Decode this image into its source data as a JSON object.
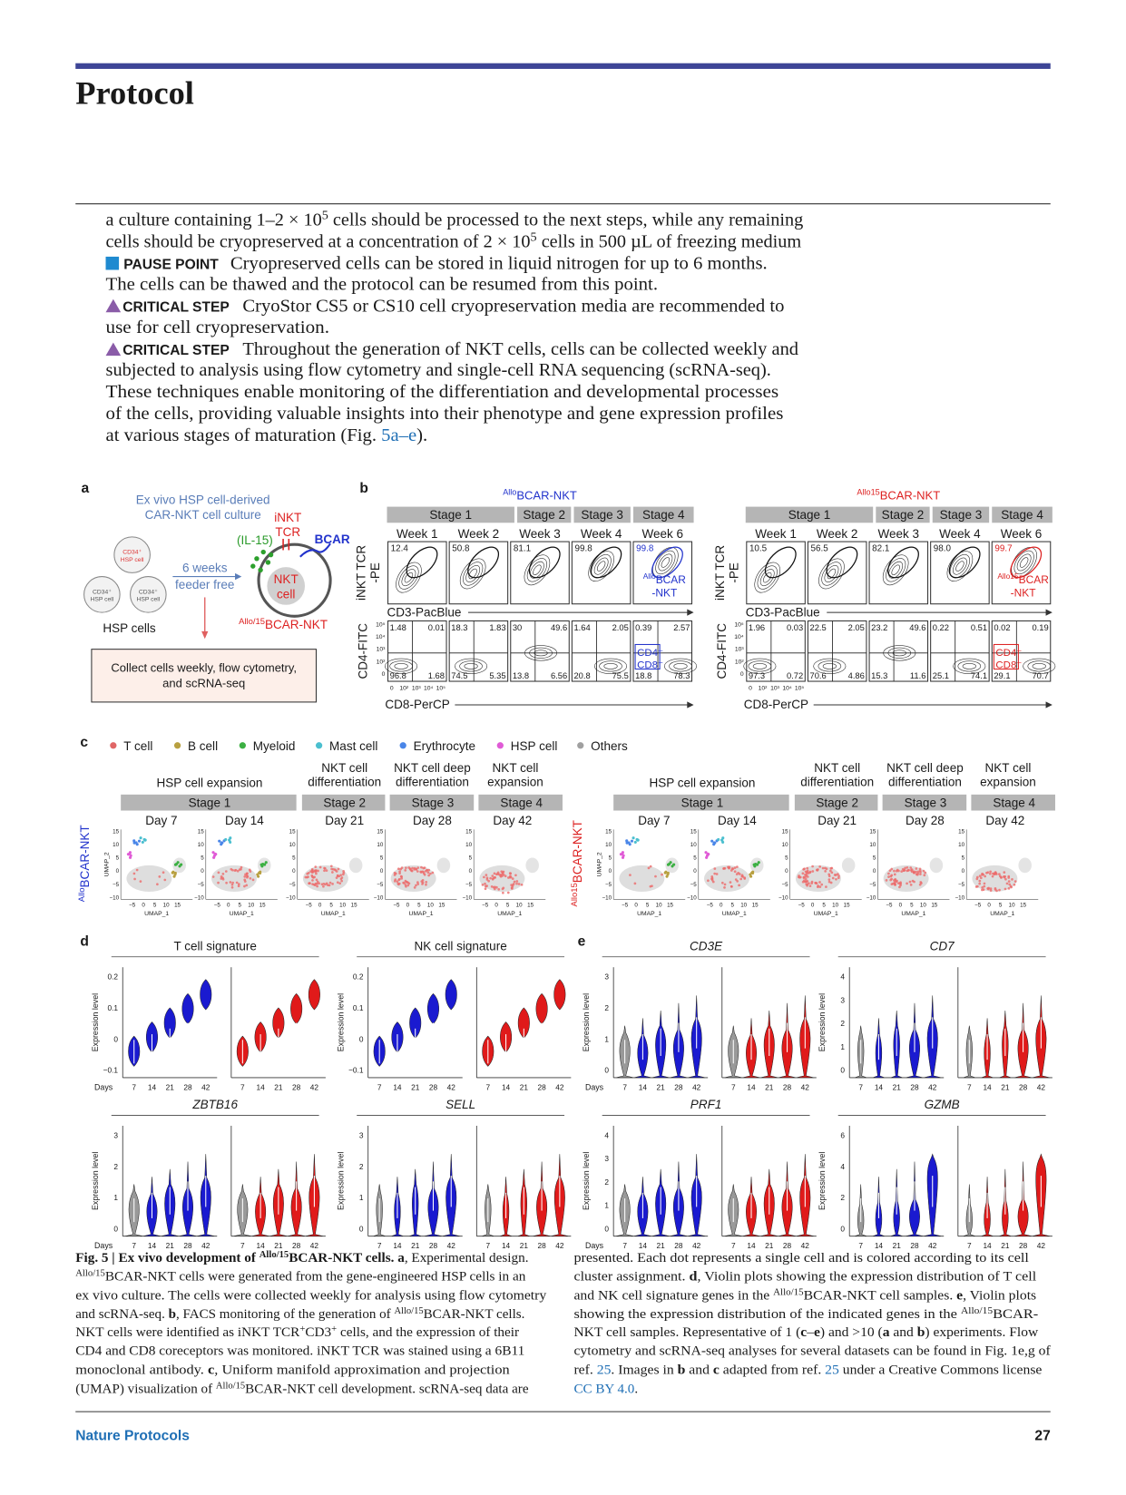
{
  "header": {
    "section": "Protocol"
  },
  "body": {
    "lines": [
      [
        "a culture containing 1–2 × 10",
        "5",
        " cells should be processed to the next steps, while any remaining"
      ],
      [
        "cells should be cryopreserved at a concentration of 2 × 10",
        "5",
        " cells in 500 µL of freezing medium"
      ],
      [
        "PAUSE POINT",
        "Cryopreserved cells can be stored in liquid nitrogen for up to 6 months."
      ],
      [
        "The cells can be thawed and the protocol can be resumed from this point."
      ],
      [
        "CRITICAL STEP",
        "CryoStor CS5 or CS10 cell cryopreservation media are recommended to"
      ],
      [
        "use for cell cryopreservation."
      ],
      [
        "CRITICAL STEP",
        "Throughout the generation of NKT cells, cells can be collected weekly and"
      ],
      [
        "subjected to analysis using flow cytometry and single-cell RNA sequencing (scRNA-seq)."
      ],
      [
        "These techniques enable monitoring of the differentiation and developmental processes"
      ],
      [
        "of the cells, providing valuable insights into their phenotype and gene expression profiles"
      ],
      [
        "at various stages of maturation (Fig. ",
        "5a–e",
        ")."
      ]
    ]
  },
  "figure": {
    "panel_labels": [
      "a",
      "b",
      "c",
      "d",
      "e"
    ],
    "a": {
      "title_lines": [
        "Ex vivo HSP cell-derived",
        "CAR-NKT cell culture"
      ],
      "hsp_cell": [
        "CD34⁺",
        "HSP cell"
      ],
      "hsp_cells": "HSP cells",
      "arrow_label": [
        "6 weeks",
        "feeder free"
      ],
      "il15": "(IL-15)",
      "inkt_tcr": [
        "iNKT",
        "TCR"
      ],
      "bcar": "BCAR",
      "nkt_cell": [
        "NKT",
        "cell"
      ],
      "product": [
        "Allo/15",
        "BCAR-NKT"
      ],
      "collect": [
        "Collect cells weekly, flow cytometry,",
        "and scRNA-seq"
      ]
    },
    "b": {
      "stages": [
        "Stage 1",
        "Stage 2",
        "Stage 3",
        "Stage 4"
      ],
      "weeks": [
        "Week 1",
        "Week 2",
        "Week 3",
        "Week 4",
        "Week 6"
      ],
      "y_top": [
        "iNKT TCR",
        "-PE"
      ],
      "x_top": "CD3-PacBlue",
      "y_bottom": "CD4-FITC",
      "x_bottom": "CD8-PerCP",
      "dn_gate": [
        "CD4⁻",
        "CD8⁻"
      ],
      "yticks": [
        "10⁵",
        "10⁴",
        "10³",
        "10²",
        "0"
      ],
      "xticks": [
        "0",
        "10²",
        "10³",
        "10⁴",
        "10⁵"
      ],
      "groups": [
        {
          "title": [
            "Allo",
            "BCAR-NKT"
          ],
          "gate": [
            "Allo",
            "BCAR",
            "-NKT"
          ],
          "top": [
            "12.4",
            "50.8",
            "81.1",
            "99.8",
            "99.8"
          ],
          "bottom": [
            [
              "1.48",
              "0.01",
              "96.8",
              "1.68"
            ],
            [
              "18.3",
              "1.83",
              "74.5",
              "5.35"
            ],
            [
              "30",
              "49.6",
              "13.8",
              "6.56"
            ],
            [
              "1.64",
              "2.05",
              "20.8",
              "75.5"
            ],
            [
              "0.39",
              "2.57",
              "18.8",
              "78.3"
            ]
          ]
        },
        {
          "title": [
            "Allo15",
            "BCAR-NKT"
          ],
          "gate": [
            "Allo15",
            "BCAR",
            "-NKT"
          ],
          "top": [
            "10.5",
            "56.5",
            "82.1",
            "98.0",
            "99.7"
          ],
          "bottom": [
            [
              "1.96",
              "0.03",
              "97.3",
              "0.72"
            ],
            [
              "22.5",
              "2.05",
              "70.6",
              "4.86"
            ],
            [
              "23.2",
              "49.6",
              "15.3",
              "11.6"
            ],
            [
              "0.22",
              "0.51",
              "25.1",
              "74.1"
            ],
            [
              "0.02",
              "0.19",
              "29.1",
              "70.7"
            ]
          ]
        }
      ]
    },
    "c": {
      "legend": [
        {
          "name": "T cell",
          "color": "#e06666"
        },
        {
          "name": "B cell",
          "color": "#b8a040"
        },
        {
          "name": "Myeloid",
          "color": "#3cb043"
        },
        {
          "name": "Mast cell",
          "color": "#4bbfcf"
        },
        {
          "name": "Erythrocyte",
          "color": "#4a86e8"
        },
        {
          "name": "HSP cell",
          "color": "#e05bd6"
        },
        {
          "name": "Others",
          "color": "#a0a0a0"
        }
      ],
      "headers": [
        [
          "HSP cell expansion"
        ],
        [
          "NKT cell",
          "differentiation"
        ],
        [
          "NKT cell deep",
          "differentiation"
        ],
        [
          "NKT cell",
          "expansion"
        ]
      ],
      "stages": [
        "Stage 1",
        "Stage 2",
        "Stage 3",
        "Stage 4"
      ],
      "days": [
        "Day 7",
        "Day 14",
        "Day 21",
        "Day 28",
        "Day 42"
      ],
      "rows": [
        [
          "Allo",
          "BCAR-NKT"
        ],
        [
          "Allo15",
          "BCAR-NKT"
        ]
      ],
      "xlabel": "UMAP_1",
      "ylabel": "UMAP_2",
      "yticks": [
        "15",
        "10",
        "5",
        "0",
        "−5",
        "−10"
      ],
      "xticks": [
        "−5",
        "0",
        "5",
        "10",
        "15"
      ]
    },
    "d": {
      "ylabel": "Expression level",
      "xlabel": "Days",
      "days": [
        "7",
        "14",
        "21",
        "28",
        "42"
      ],
      "plots": [
        {
          "title": "T cell signature",
          "italic": false,
          "yticks": [
            "−0.1",
            "0",
            "0.1",
            "0.2"
          ]
        },
        {
          "title": "NK cell signature",
          "italic": false,
          "yticks": [
            "−0.1",
            "0",
            "0.1",
            "0.2"
          ]
        },
        {
          "title": "ZBTB16",
          "italic": true,
          "yticks": [
            "0",
            "1",
            "2",
            "3"
          ]
        },
        {
          "title": "SELL",
          "italic": true,
          "yticks": [
            "0",
            "1",
            "2",
            "3"
          ]
        }
      ]
    },
    "e": {
      "ylabel": "Expression level",
      "xlabel": "Days",
      "days": [
        "7",
        "14",
        "21",
        "28",
        "42"
      ],
      "plots": [
        {
          "title": "CD3E",
          "italic": true,
          "yticks": [
            "0",
            "1",
            "2",
            "3"
          ]
        },
        {
          "title": "CD7",
          "italic": true,
          "yticks": [
            "0",
            "1",
            "2",
            "3",
            "4"
          ]
        },
        {
          "title": "PRF1",
          "italic": true,
          "yticks": [
            "0",
            "1",
            "2",
            "3",
            "4"
          ]
        },
        {
          "title": "GZMB",
          "italic": true,
          "yticks": [
            "0",
            "2",
            "4",
            "6"
          ]
        }
      ]
    }
  },
  "caption": {
    "left": [
      [
        "Fig. 5 | Ex vivo development of ",
        "Allo/15",
        "BCAR-NKT cells. ",
        "a",
        ", Experimental design."
      ],
      [
        "Allo/15",
        "BCAR-NKT cells were generated from the gene-engineered HSP cells in an"
      ],
      [
        "ex vivo culture. The cells were collected weekly for analysis using flow cytometry"
      ],
      [
        "and scRNA-seq. ",
        "b",
        ", FACS monitoring of the generation of ",
        "Allo/15",
        "BCAR-NKT cells."
      ],
      [
        "NKT cells were identified as iNKT TCR",
        "+",
        "CD3",
        "+",
        " cells, and the expression of their"
      ],
      [
        "CD4 and CD8 coreceptors was monitored. iNKT TCR was stained using a 6B11"
      ],
      [
        "monoclonal antibody. ",
        "c",
        ", Uniform manifold approximation and projection"
      ],
      [
        "(UMAP) visualization of ",
        "Allo/15",
        "BCAR-NKT cell development. scRNA-seq data are"
      ]
    ],
    "right": [
      [
        "presented. Each dot represents a single cell and is colored according to its cell"
      ],
      [
        "cluster assignment. ",
        "d",
        ", Violin plots showing the expression distribution of T cell"
      ],
      [
        "and NK cell signature genes in the ",
        "Allo/15",
        "BCAR-NKT cell samples. ",
        "e",
        ", Violin plots"
      ],
      [
        "showing the expression distribution of the indicated genes in the ",
        "Allo/15",
        "BCAR-"
      ],
      [
        "NKT cell samples. Representative of 1 (",
        "c",
        "–",
        "e",
        ") and >10 (",
        "a",
        " and ",
        "b",
        ") experiments. Flow"
      ],
      [
        "cytometry and scRNA-seq analyses for several datasets can be found in Fig. 1e,g of"
      ],
      [
        "ref. ",
        "25",
        ". Images in ",
        "b",
        " and ",
        "c",
        " adapted from ref. ",
        "25",
        " under a Creative Commons license"
      ],
      [
        "CC BY 4.0",
        "."
      ]
    ]
  },
  "footer": {
    "journal": "Nature Protocols",
    "page": "27"
  }
}
